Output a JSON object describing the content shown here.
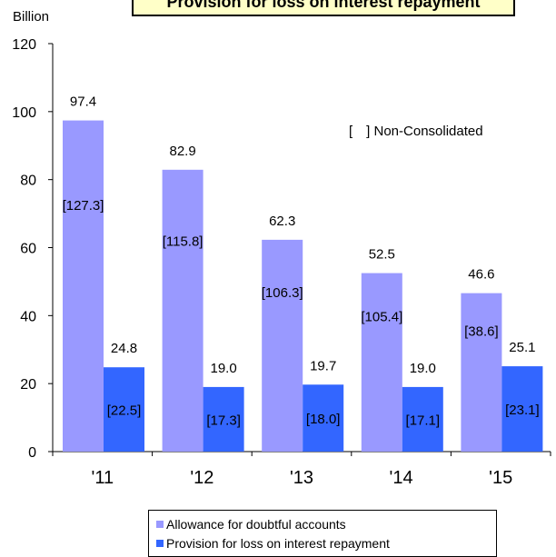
{
  "chart_data": {
    "type": "bar",
    "title": "Provision for loss on interest repayment",
    "unit_label": "Billion",
    "note": "[　] Non-Consolidated",
    "categories": [
      "'11",
      "'12",
      "'13",
      "'14",
      "'15"
    ],
    "series": [
      {
        "name": "Allowance for doubtful accounts",
        "color": "#9999ff",
        "values": [
          97.4,
          82.9,
          62.3,
          52.5,
          46.6
        ],
        "non_consolidated": [
          127.3,
          115.8,
          106.3,
          105.4,
          38.6
        ]
      },
      {
        "name": "Provision for loss on interest repayment",
        "color": "#3366ff",
        "values": [
          24.8,
          19.0,
          19.7,
          19.0,
          25.1
        ],
        "non_consolidated": [
          22.5,
          17.3,
          18.0,
          17.1,
          23.1
        ]
      }
    ],
    "ylim": [
      0,
      120
    ],
    "yticks": [
      0,
      20,
      40,
      60,
      80,
      100,
      120
    ],
    "grid": false,
    "legend_position": "bottom"
  }
}
